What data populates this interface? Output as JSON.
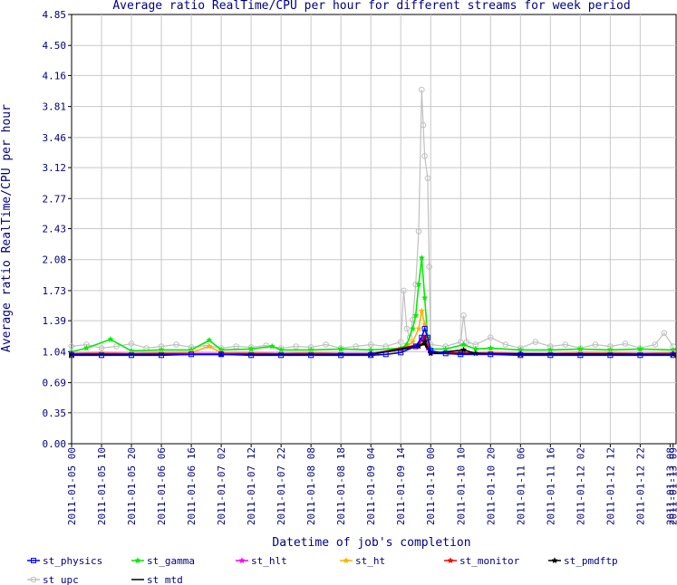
{
  "chart_data": {
    "type": "line",
    "title": "Average ratio RealTime/CPU per hour for different streams for week period",
    "xlabel": "Datetime of job's completion",
    "ylabel": "Average ratio RealTime/CPU per hour",
    "ylim": [
      0,
      4.85
    ],
    "y_ticks": [
      "0.00",
      "0.35",
      "0.69",
      "1.04",
      "1.39",
      "1.73",
      "2.08",
      "2.43",
      "2.77",
      "3.12",
      "3.46",
      "3.81",
      "4.16",
      "4.50",
      "4.85"
    ],
    "x_ticks": [
      "2011-01-05 00",
      "2011-01-05 10",
      "2011-01-05 20",
      "2011-01-06 06",
      "2011-01-06 16",
      "2011-01-07 02",
      "2011-01-07 12",
      "2011-01-07 22",
      "2011-01-08 08",
      "2011-01-08 18",
      "2011-01-09 04",
      "2011-01-09 14",
      "2011-01-10 00",
      "2011-01-10 10",
      "2011-01-10 20",
      "2011-01-11 06",
      "2011-01-11 16",
      "2011-01-12 02",
      "2011-01-12 12",
      "2011-01-12 22",
      "2011-01-13 08",
      "2011-01-13 09"
    ],
    "x_hours": [
      0,
      10,
      20,
      30,
      40,
      50,
      60,
      70,
      80,
      90,
      100,
      110,
      120,
      130,
      140,
      150,
      160,
      170,
      180,
      190,
      200,
      201
    ],
    "x_range_hours": [
      0,
      202
    ],
    "grid": true,
    "legend_position": "bottom",
    "series": [
      {
        "name": "st_physics",
        "color": "#0000ff",
        "marker": "square",
        "points": [
          [
            0,
            1.0
          ],
          [
            10,
            1.0
          ],
          [
            20,
            1.0
          ],
          [
            30,
            1.0
          ],
          [
            40,
            1.01
          ],
          [
            50,
            1.01
          ],
          [
            60,
            1.0
          ],
          [
            70,
            1.0
          ],
          [
            80,
            1.0
          ],
          [
            90,
            1.0
          ],
          [
            100,
            1.0
          ],
          [
            105,
            1.01
          ],
          [
            110,
            1.03
          ],
          [
            115,
            1.1
          ],
          [
            117,
            1.2
          ],
          [
            118,
            1.3
          ],
          [
            119,
            1.2
          ],
          [
            120,
            1.05
          ],
          [
            125,
            1.02
          ],
          [
            130,
            1.01
          ],
          [
            140,
            1.01
          ],
          [
            150,
            1.0
          ],
          [
            160,
            1.0
          ],
          [
            170,
            1.0
          ],
          [
            180,
            1.0
          ],
          [
            190,
            1.0
          ],
          [
            201,
            1.0
          ]
        ]
      },
      {
        "name": "st_gamma",
        "color": "#00ee00",
        "marker": "star",
        "points": [
          [
            0,
            1.04
          ],
          [
            5,
            1.08
          ],
          [
            13,
            1.18
          ],
          [
            20,
            1.05
          ],
          [
            30,
            1.06
          ],
          [
            40,
            1.06
          ],
          [
            46,
            1.17
          ],
          [
            50,
            1.06
          ],
          [
            60,
            1.07
          ],
          [
            67,
            1.1
          ],
          [
            70,
            1.06
          ],
          [
            80,
            1.06
          ],
          [
            90,
            1.07
          ],
          [
            100,
            1.06
          ],
          [
            110,
            1.08
          ],
          [
            112,
            1.12
          ],
          [
            114,
            1.3
          ],
          [
            115,
            1.45
          ],
          [
            116,
            1.8
          ],
          [
            117,
            2.1
          ],
          [
            118,
            1.65
          ],
          [
            119,
            1.2
          ],
          [
            120,
            1.07
          ],
          [
            125,
            1.07
          ],
          [
            131,
            1.12
          ],
          [
            135,
            1.07
          ],
          [
            140,
            1.08
          ],
          [
            150,
            1.06
          ],
          [
            160,
            1.06
          ],
          [
            170,
            1.07
          ],
          [
            180,
            1.06
          ],
          [
            190,
            1.07
          ],
          [
            201,
            1.06
          ]
        ]
      },
      {
        "name": "st_hlt",
        "color": "#ff00ff",
        "marker": "star",
        "points": [
          [
            0,
            1.02
          ],
          [
            50,
            1.02
          ],
          [
            100,
            1.02
          ],
          [
            115,
            1.1
          ],
          [
            117,
            1.18
          ],
          [
            119,
            1.08
          ],
          [
            120,
            1.03
          ],
          [
            150,
            1.02
          ],
          [
            201,
            1.02
          ]
        ]
      },
      {
        "name": "st_ht",
        "color": "#ffb000",
        "marker": "star",
        "points": [
          [
            0,
            1.02
          ],
          [
            10,
            1.03
          ],
          [
            20,
            1.02
          ],
          [
            30,
            1.03
          ],
          [
            40,
            1.03
          ],
          [
            46,
            1.1
          ],
          [
            50,
            1.03
          ],
          [
            60,
            1.03
          ],
          [
            70,
            1.02
          ],
          [
            80,
            1.03
          ],
          [
            90,
            1.02
          ],
          [
            100,
            1.02
          ],
          [
            110,
            1.05
          ],
          [
            114,
            1.15
          ],
          [
            116,
            1.3
          ],
          [
            117,
            1.5
          ],
          [
            118,
            1.35
          ],
          [
            119,
            1.15
          ],
          [
            120,
            1.04
          ],
          [
            130,
            1.03
          ],
          [
            140,
            1.03
          ],
          [
            150,
            1.02
          ],
          [
            160,
            1.02
          ],
          [
            170,
            1.03
          ],
          [
            180,
            1.03
          ],
          [
            190,
            1.02
          ],
          [
            201,
            1.03
          ]
        ]
      },
      {
        "name": "st_monitor",
        "color": "#ff0000",
        "marker": "star",
        "points": [
          [
            0,
            1.01
          ],
          [
            50,
            1.01
          ],
          [
            100,
            1.01
          ],
          [
            116,
            1.12
          ],
          [
            118,
            1.2
          ],
          [
            120,
            1.03
          ],
          [
            150,
            1.01
          ],
          [
            201,
            1.01
          ]
        ]
      },
      {
        "name": "st_pmdftp",
        "color": "#000000",
        "marker": "star",
        "points": [
          [
            0,
            1.01
          ],
          [
            50,
            1.01
          ],
          [
            100,
            1.01
          ],
          [
            116,
            1.1
          ],
          [
            118,
            1.15
          ],
          [
            120,
            1.02
          ],
          [
            131,
            1.06
          ],
          [
            135,
            1.02
          ],
          [
            150,
            1.01
          ],
          [
            201,
            1.01
          ]
        ]
      },
      {
        "name": "st_upc",
        "color": "#c0c0c0",
        "marker": "circle",
        "points": [
          [
            0,
            1.1
          ],
          [
            5,
            1.12
          ],
          [
            10,
            1.08
          ],
          [
            15,
            1.1
          ],
          [
            20,
            1.13
          ],
          [
            25,
            1.08
          ],
          [
            30,
            1.1
          ],
          [
            35,
            1.12
          ],
          [
            40,
            1.09
          ],
          [
            45,
            1.11
          ],
          [
            50,
            1.08
          ],
          [
            55,
            1.1
          ],
          [
            60,
            1.09
          ],
          [
            65,
            1.11
          ],
          [
            70,
            1.08
          ],
          [
            75,
            1.1
          ],
          [
            80,
            1.09
          ],
          [
            85,
            1.12
          ],
          [
            90,
            1.08
          ],
          [
            95,
            1.1
          ],
          [
            100,
            1.12
          ],
          [
            105,
            1.1
          ],
          [
            110,
            1.15
          ],
          [
            111,
            1.73
          ],
          [
            112,
            1.3
          ],
          [
            113,
            1.2
          ],
          [
            114,
            1.4
          ],
          [
            115,
            1.8
          ],
          [
            116,
            2.4
          ],
          [
            117,
            4.0
          ],
          [
            117.5,
            3.6
          ],
          [
            118,
            3.25
          ],
          [
            119,
            3.0
          ],
          [
            119.5,
            2.0
          ],
          [
            120,
            1.12
          ],
          [
            125,
            1.1
          ],
          [
            130,
            1.15
          ],
          [
            131,
            1.45
          ],
          [
            132,
            1.15
          ],
          [
            135,
            1.12
          ],
          [
            140,
            1.2
          ],
          [
            145,
            1.12
          ],
          [
            150,
            1.08
          ],
          [
            155,
            1.15
          ],
          [
            160,
            1.1
          ],
          [
            165,
            1.12
          ],
          [
            170,
            1.08
          ],
          [
            175,
            1.12
          ],
          [
            180,
            1.1
          ],
          [
            185,
            1.13
          ],
          [
            190,
            1.08
          ],
          [
            195,
            1.12
          ],
          [
            198,
            1.25
          ],
          [
            201,
            1.1
          ]
        ]
      },
      {
        "name": "st_mtd",
        "color": "#000000",
        "marker": "none",
        "points": [
          [
            0,
            1.01
          ],
          [
            50,
            1.01
          ],
          [
            100,
            1.01
          ],
          [
            118,
            1.12
          ],
          [
            120,
            1.02
          ],
          [
            201,
            1.01
          ]
        ]
      }
    ]
  }
}
